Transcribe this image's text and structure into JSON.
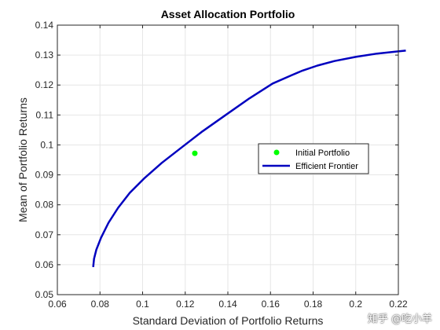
{
  "chart_data": {
    "type": "line",
    "title": "Asset Allocation Portfolio",
    "xlabel": "Standard Deviation of Portfolio Returns",
    "ylabel": "Mean of Portfolio Returns",
    "xlim": [
      0.06,
      0.22
    ],
    "ylim": [
      0.05,
      0.14
    ],
    "xticks": [
      "0.06",
      "0.08",
      "0.1",
      "0.12",
      "0.14",
      "0.16",
      "0.18",
      "0.2",
      "0.22"
    ],
    "yticks": [
      "0.05",
      "0.06",
      "0.07",
      "0.08",
      "0.09",
      "0.1",
      "0.11",
      "0.12",
      "0.13",
      "0.14"
    ],
    "grid": true,
    "legend_position": "right",
    "series": [
      {
        "name": "Initial Portfolio",
        "type": "scatter",
        "color": "#00ff00",
        "points": [
          [
            0.1245,
            0.0972
          ]
        ]
      },
      {
        "name": "Efficient Frontier",
        "type": "line",
        "color": "#0000bf",
        "points": [
          [
            0.0768,
            0.0592
          ],
          [
            0.0772,
            0.062
          ],
          [
            0.0783,
            0.065
          ],
          [
            0.0805,
            0.069
          ],
          [
            0.084,
            0.074
          ],
          [
            0.0885,
            0.079
          ],
          [
            0.094,
            0.084
          ],
          [
            0.101,
            0.089
          ],
          [
            0.109,
            0.094
          ],
          [
            0.118,
            0.099
          ],
          [
            0.128,
            0.1045
          ],
          [
            0.139,
            0.11
          ],
          [
            0.15,
            0.1155
          ],
          [
            0.161,
            0.1205
          ],
          [
            0.17,
            0.1233
          ],
          [
            0.175,
            0.1248
          ],
          [
            0.182,
            0.1265
          ],
          [
            0.19,
            0.128
          ],
          [
            0.2,
            0.1294
          ],
          [
            0.21,
            0.1305
          ],
          [
            0.2235,
            0.1315
          ]
        ]
      }
    ]
  },
  "watermark": "知乎 @吃小羊"
}
